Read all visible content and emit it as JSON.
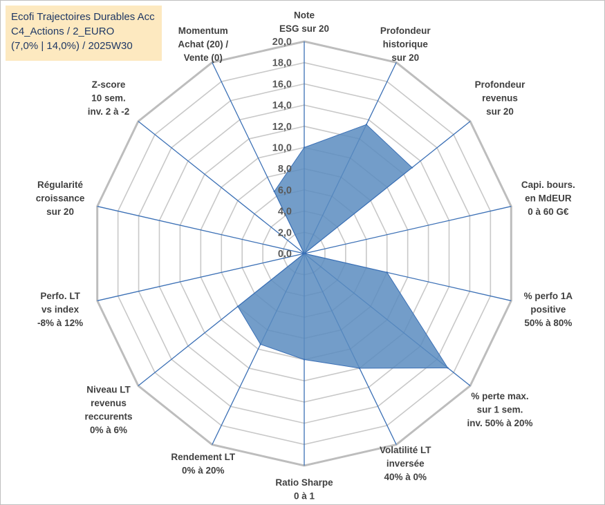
{
  "title_lines": [
    "Ecofi Trajectoires Durables Acc",
    "C4_Actions / 2_EURO",
    "(7,0% | 14,0%) / 2025W30"
  ],
  "colors": {
    "title_bg": "#fde9c0",
    "title_text": "#1f3864",
    "fill": "#5b8cc0",
    "line": "#3a6fb5",
    "ring": "#c8c8c8",
    "outer": "#bdbdbd"
  },
  "chart_data": {
    "type": "radar",
    "rmin": 0,
    "rmax": 20,
    "tick_step": 2,
    "tick_labels": [
      "0,0",
      "2,0",
      "4,0",
      "6,0",
      "8,0",
      "10,0",
      "12,0",
      "14,0",
      "16,0",
      "18,0",
      "20,0"
    ],
    "axes": [
      {
        "label": [
          "Note",
          "ESG sur 20"
        ],
        "value": 10.0
      },
      {
        "label": [
          "Profondeur",
          "historique",
          "sur 20"
        ],
        "value": 13.5
      },
      {
        "label": [
          "Profondeur",
          "revenus",
          "sur 20"
        ],
        "value": 13.0
      },
      {
        "label": [
          "Capi. bours.",
          "en MdEUR",
          "0 à 60 G€"
        ],
        "value": 0.0
      },
      {
        "label": [
          "% perfo 1A",
          "positive",
          "50% à 80%"
        ],
        "value": 8.0
      },
      {
        "label": [
          "% perte max.",
          "sur 1 sem.",
          "inv. 50% à 20%"
        ],
        "value": 17.3
      },
      {
        "label": [
          "Volatilité LT",
          "inversée",
          "40% à 0%"
        ],
        "value": 12.0
      },
      {
        "label": [
          "Ratio Sharpe",
          "0 à 1"
        ],
        "value": 10.0
      },
      {
        "label": [
          "Rendement LT",
          "0% à 20%"
        ],
        "value": 9.5
      },
      {
        "label": [
          "Niveau LT",
          "revenus",
          "reccurents",
          "0% à 6%"
        ],
        "value": 8.0
      },
      {
        "label": [
          "Perfo. LT",
          "vs index",
          "-8% à 12%"
        ],
        "value": 0.0
      },
      {
        "label": [
          "Régularité",
          "croissance",
          "sur 20"
        ],
        "value": 0.0
      },
      {
        "label": [
          "Z-score",
          "10 sem.",
          "inv. 2 à -2"
        ],
        "value": 0.0
      },
      {
        "label": [
          "Momentum",
          "Achat (20) /",
          "Vente (0)"
        ],
        "value": 6.5
      }
    ]
  }
}
